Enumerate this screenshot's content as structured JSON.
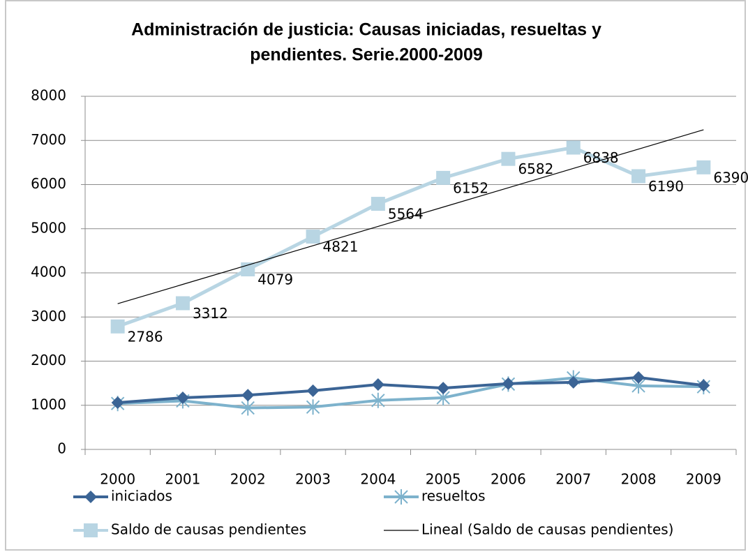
{
  "chart_data": {
    "type": "line",
    "title": [
      "Administración de justicia: Causas iniciadas, resueltas y",
      "pendientes. Serie.2000-2009"
    ],
    "categories": [
      "2000",
      "2001",
      "2002",
      "2003",
      "2004",
      "2005",
      "2006",
      "2007",
      "2008",
      "2009"
    ],
    "series": [
      {
        "name": "iniciados",
        "color": "#3b6495",
        "marker": "diamond",
        "values": [
          1060,
          1170,
          1230,
          1330,
          1470,
          1390,
          1490,
          1520,
          1630,
          1450
        ]
      },
      {
        "name": "resueltos",
        "color": "#7db2cc",
        "marker": "star",
        "values": [
          1040,
          1100,
          940,
          960,
          1110,
          1170,
          1480,
          1620,
          1440,
          1420
        ]
      },
      {
        "name": "Saldo de causas pendientes",
        "color": "#b8d5e3",
        "marker": "square",
        "labels": true,
        "values": [
          2786,
          3312,
          4079,
          4821,
          5564,
          6152,
          6582,
          6838,
          6190,
          6390
        ]
      },
      {
        "name": "Lineal (Saldo de causas pendientes)",
        "color": "#000000",
        "marker": "none",
        "values": [
          3301,
          3739,
          4177,
          4615,
          5053,
          5490,
          5928,
          6366,
          6804,
          7242
        ]
      }
    ],
    "ylim": [
      0,
      8000
    ],
    "yticks": [
      0,
      1000,
      2000,
      3000,
      4000,
      5000,
      6000,
      7000,
      8000
    ],
    "grid": true,
    "legend": "bottom"
  }
}
